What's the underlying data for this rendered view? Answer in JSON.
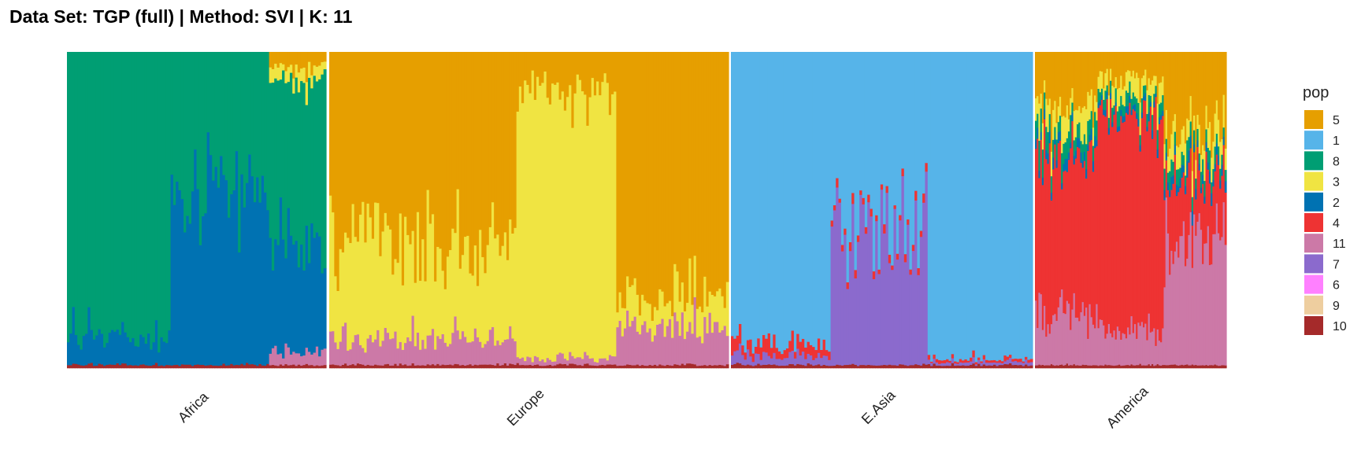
{
  "title": "Data Set: TGP (full) | Method: SVI | K: 11",
  "chart_data": {
    "type": "stacked_bar",
    "legend_title": "pop",
    "legend_position": "right",
    "colors": {
      "5": "#E69F00",
      "1": "#56B4E9",
      "8": "#009E73",
      "3": "#F0E442",
      "2": "#0072B2",
      "4": "#EE3333",
      "11": "#CC79A7",
      "7": "#8B6ACD",
      "6": "#FF80FF",
      "9": "#EECE9F",
      "10": "#A52A2A"
    },
    "legend_order": [
      "5",
      "1",
      "8",
      "3",
      "2",
      "4",
      "11",
      "7",
      "6",
      "9",
      "10"
    ],
    "stack_order": [
      "10",
      "9",
      "6",
      "11",
      "7",
      "4",
      "2",
      "8",
      "3",
      "1",
      "5"
    ],
    "ylim": [
      0,
      1
    ],
    "panels": [
      {
        "name": "Africa",
        "groups": [
          {
            "n": 40,
            "mean": {
              "10": 0.01,
              "2": 0.09,
              "8": 0.9
            }
          },
          {
            "n": 38,
            "mean": {
              "10": 0.01,
              "2": 0.55,
              "8": 0.44
            }
          },
          {
            "n": 22,
            "mean": {
              "10": 0.01,
              "11": 0.05,
              "2": 0.35,
              "3": 0.04,
              "8": 0.5,
              "5": 0.05
            }
          }
        ]
      },
      {
        "name": "Europe",
        "groups": [
          {
            "n": 75,
            "mean": {
              "10": 0.01,
              "11": 0.08,
              "3": 0.3,
              "5": 0.61
            }
          },
          {
            "n": 40,
            "mean": {
              "10": 0.01,
              "11": 0.02,
              "3": 0.85,
              "5": 0.12
            }
          },
          {
            "n": 45,
            "mean": {
              "10": 0.01,
              "11": 0.12,
              "3": 0.1,
              "5": 0.77
            }
          }
        ]
      },
      {
        "name": "E.Asia",
        "groups": [
          {
            "n": 38,
            "mean": {
              "10": 0.01,
              "7": 0.03,
              "4": 0.04,
              "1": 0.92
            }
          },
          {
            "n": 37,
            "mean": {
              "10": 0.01,
              "7": 0.41,
              "4": 0.02,
              "1": 0.56
            }
          },
          {
            "n": 40,
            "mean": {
              "10": 0.01,
              "7": 0.01,
              "4": 0.01,
              "1": 0.97
            }
          }
        ]
      },
      {
        "name": "America",
        "groups": [
          {
            "n": 36,
            "mean": {
              "10": 0.01,
              "11": 0.17,
              "4": 0.47,
              "2": 0.03,
              "8": 0.06,
              "3": 0.08,
              "5": 0.18
            }
          },
          {
            "n": 38,
            "mean": {
              "10": 0.01,
              "11": 0.12,
              "4": 0.65,
              "2": 0.02,
              "8": 0.04,
              "3": 0.06,
              "5": 0.1
            }
          },
          {
            "n": 36,
            "mean": {
              "10": 0.01,
              "11": 0.38,
              "4": 0.2,
              "2": 0.03,
              "8": 0.05,
              "3": 0.08,
              "5": 0.25
            }
          }
        ]
      }
    ]
  }
}
